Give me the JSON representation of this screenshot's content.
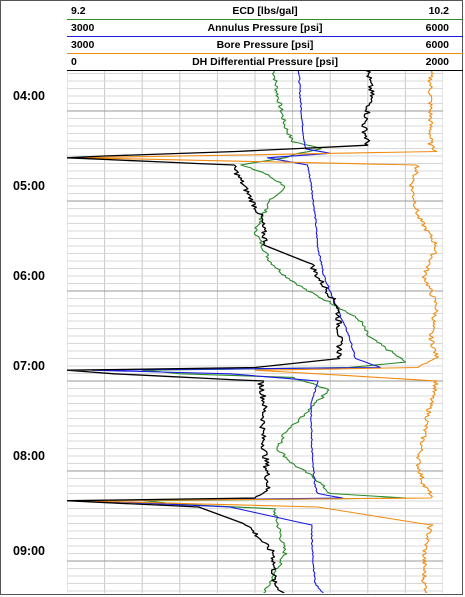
{
  "chart_data": {
    "type": "line",
    "tracks": [
      {
        "name": "ECD [lbs/gal]",
        "min": "9.2",
        "max": "10.2",
        "color": "#2a8a2a"
      },
      {
        "name": "Annulus Pressure [psi]",
        "min": "3000",
        "max": "6000",
        "color": "#1a1ae0"
      },
      {
        "name": "Bore Pressure [psi]",
        "min": "3000",
        "max": "6000",
        "color": "#f08c14"
      },
      {
        "name": "DH Differential Pressure [psi]",
        "min": "0",
        "max": "2000",
        "color": "#000000"
      }
    ],
    "y_tick_labels": [
      "04:00",
      "05:00",
      "06:00",
      "07:00",
      "08:00",
      "09:00"
    ],
    "y_axis_reversed": true,
    "grid": true,
    "series": [
      {
        "track": "ECD [lbs/gal]",
        "t": [
          3.55,
          3.83,
          4.17,
          4.34,
          4.42,
          4.47,
          4.52,
          4.6,
          4.68,
          4.83,
          5.0,
          5.17,
          5.33,
          5.5,
          5.67,
          5.83,
          6.0,
          6.17,
          6.33,
          6.5,
          6.67,
          6.79,
          6.85,
          6.88,
          6.92,
          6.96,
          7.1,
          7.25,
          7.42,
          7.58,
          7.75,
          7.92,
          8.08,
          8.25,
          8.3,
          8.33,
          8.37,
          8.42,
          8.58,
          8.75,
          8.92,
          9.08,
          9.25,
          9.4,
          9.45,
          9.6
        ],
        "values": [
          9.75,
          9.76,
          9.78,
          9.8,
          9.88,
          9.82,
          9.78,
          9.66,
          9.72,
          9.78,
          9.74,
          9.72,
          9.7,
          9.72,
          9.74,
          9.78,
          9.84,
          9.92,
          9.98,
          10.0,
          10.06,
          10.1,
          9.95,
          9.4,
          9.5,
          9.8,
          9.9,
          9.86,
          9.82,
          9.78,
          9.76,
          9.8,
          9.86,
          9.9,
          10.1,
          9.4,
          9.5,
          9.75,
          9.76,
          9.77,
          9.78,
          9.76,
          9.74,
          9.72,
          10.06,
          9.7
        ]
      },
      {
        "track": "Annulus Pressure [psi]",
        "t": [
          3.55,
          3.83,
          4.17,
          4.42,
          4.47,
          4.52,
          4.6,
          4.83,
          5.17,
          5.5,
          5.83,
          6.17,
          6.5,
          6.75,
          6.85,
          6.88,
          6.92,
          7.0,
          7.25,
          7.58,
          7.92,
          8.17,
          8.25,
          8.3,
          8.33,
          8.4,
          8.6,
          8.92,
          9.25,
          9.45,
          9.6
        ],
        "values": [
          4850,
          4860,
          4880,
          4900,
          5100,
          4600,
          4920,
          4950,
          4980,
          5000,
          5050,
          5150,
          5250,
          5300,
          5500,
          3200,
          4300,
          5000,
          4950,
          4950,
          4960,
          4980,
          5000,
          5200,
          3200,
          4300,
          4950,
          4960,
          4980,
          5100,
          4980
        ]
      },
      {
        "track": "Bore Pressure [psi]",
        "t": [
          3.55,
          3.83,
          4.17,
          4.38,
          4.45,
          4.52,
          4.6,
          4.83,
          5.17,
          5.5,
          5.83,
          6.17,
          6.5,
          6.75,
          6.85,
          6.88,
          6.92,
          7.0,
          7.25,
          7.58,
          7.92,
          8.17,
          8.25,
          8.3,
          8.33,
          8.4,
          8.6,
          8.92,
          9.25,
          9.45,
          9.6
        ],
        "values": [
          5900,
          5900,
          5900,
          5900,
          5950,
          3100,
          5800,
          5750,
          5800,
          5950,
          5850,
          5950,
          5900,
          5950,
          5800,
          4500,
          5000,
          5950,
          5900,
          5850,
          5800,
          5850,
          5900,
          5900,
          3100,
          5000,
          5900,
          5850,
          5850,
          5900,
          5850
        ]
      },
      {
        "track": "DH Differential Pressure [psi]",
        "t": [
          3.55,
          3.83,
          4.17,
          4.38,
          4.45,
          4.5,
          4.52,
          4.6,
          4.83,
          5.17,
          5.5,
          5.7,
          5.83,
          6.17,
          6.5,
          6.75,
          6.85,
          6.88,
          6.92,
          7.0,
          7.25,
          7.58,
          7.92,
          8.17,
          8.25,
          8.3,
          8.33,
          8.4,
          8.6,
          8.92,
          9.25,
          9.45,
          9.6
        ],
        "values": [
          1600,
          1620,
          1580,
          1600,
          900,
          200,
          0,
          880,
          940,
          1030,
          1060,
          1300,
          1330,
          1440,
          1450,
          1450,
          1000,
          0,
          250,
          1030,
          1050,
          1040,
          1060,
          1070,
          1050,
          1000,
          0,
          700,
          960,
          1100,
          1100,
          1200,
          1050
        ]
      }
    ]
  }
}
